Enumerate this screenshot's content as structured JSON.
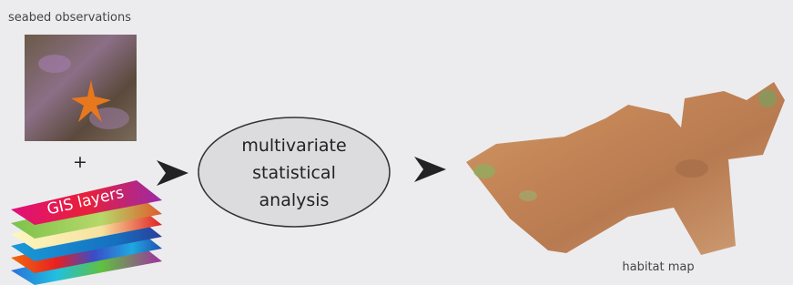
{
  "labels": {
    "observations": "seabed observations",
    "plus": "+",
    "gis": "GIS layers",
    "analysis": [
      "multivariate",
      "statistical",
      "analysis"
    ],
    "map": "habitat map"
  }
}
